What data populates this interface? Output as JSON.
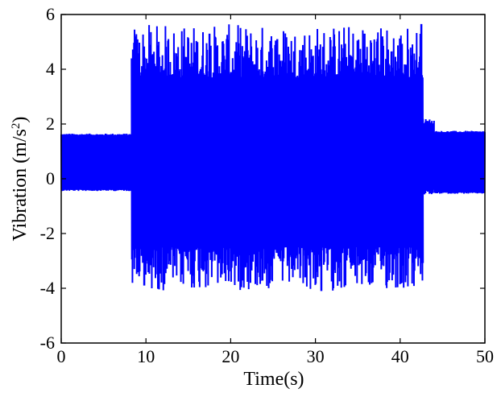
{
  "chart_data": {
    "type": "line",
    "title": "",
    "xlabel": "Time(s)",
    "ylabel_main": "Vibration (m/s",
    "ylabel_sup": "2",
    "ylabel_tail": ")",
    "xlim": [
      0,
      50
    ],
    "ylim": [
      -6,
      6
    ],
    "xticks": [
      0,
      10,
      20,
      30,
      40,
      50
    ],
    "yticks": [
      -6,
      -4,
      -2,
      0,
      2,
      4,
      6
    ],
    "grid": false,
    "series": [
      {
        "color": "#0000ff",
        "segments": [
          {
            "t_start": 0.0,
            "t_end": 8.3,
            "low": -0.4,
            "high": 1.6,
            "peak_min": -0.45,
            "peak_max": 1.65
          },
          {
            "t_start": 8.3,
            "t_end": 42.7,
            "low": -2.5,
            "high": 3.7,
            "peak_min": -4.1,
            "peak_max": 5.65
          },
          {
            "t_start": 42.7,
            "t_end": 44.0,
            "low": -0.4,
            "high": 2.0,
            "peak_min": -0.6,
            "peak_max": 2.2
          },
          {
            "t_start": 44.0,
            "t_end": 50.0,
            "low": -0.5,
            "high": 1.7,
            "peak_min": -0.55,
            "peak_max": 1.75
          }
        ],
        "notable_peaks": [
          {
            "t": 9.8,
            "v": -3.9
          },
          {
            "t": 11.0,
            "v": 4.2
          },
          {
            "t": 15.0,
            "v": 5.0
          },
          {
            "t": 17.5,
            "v": 5.3
          },
          {
            "t": 25.5,
            "v": 5.1
          },
          {
            "t": 28.8,
            "v": -3.6
          },
          {
            "t": 30.7,
            "v": -4.1
          },
          {
            "t": 35.8,
            "v": 5.3
          },
          {
            "t": 37.9,
            "v": 5.2
          },
          {
            "t": 42.5,
            "v": 5.65
          }
        ]
      }
    ]
  }
}
